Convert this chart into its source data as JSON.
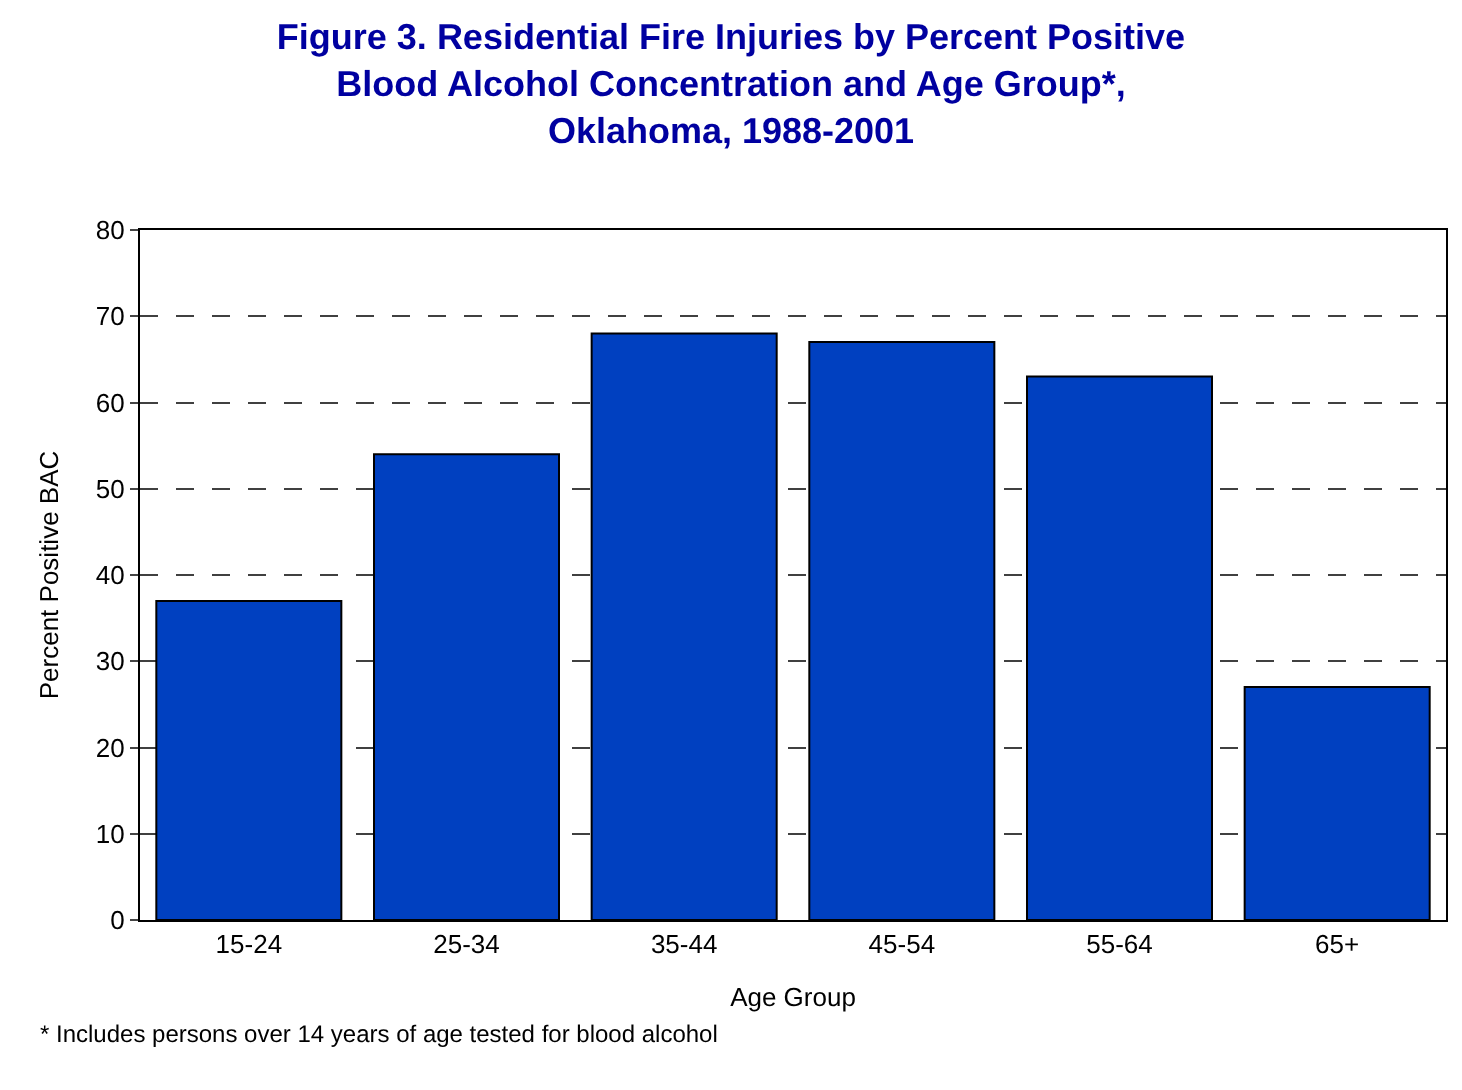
{
  "chart_data": {
    "type": "bar",
    "title": "Figure 3. Residential Fire Injuries by Percent Positive\nBlood Alcohol Concentration and Age Group*,\nOklahoma, 1988-2001",
    "xlabel": "Age Group",
    "ylabel": "Percent Positive BAC",
    "categories": [
      "15-24",
      "25-34",
      "35-44",
      "45-54",
      "55-64",
      "65+"
    ],
    "values": [
      37,
      54,
      68,
      67,
      63,
      27
    ],
    "color": "#0040c0",
    "ylim": [
      0,
      80
    ],
    "yticks": [
      0,
      10,
      20,
      30,
      40,
      50,
      60,
      70,
      80
    ],
    "grid": "y",
    "annotations": [
      "* Includes persons over 14 years of age tested for blood alcohol"
    ]
  }
}
